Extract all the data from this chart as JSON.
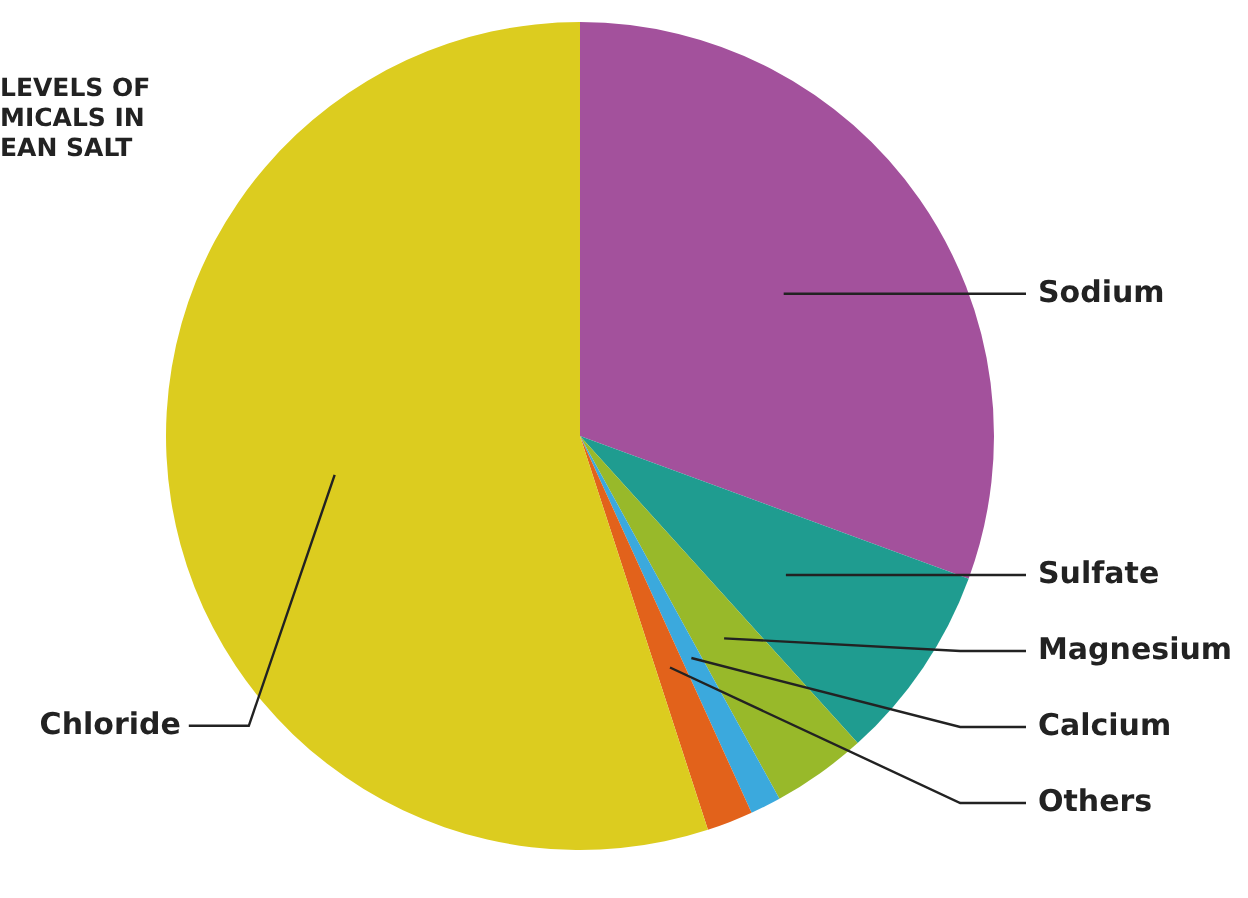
{
  "chart_data": {
    "type": "pie",
    "title": "LEVELS OF\nMICALS IN\nEAN SALT",
    "categories": [
      "Sodium",
      "Sulfate",
      "Magnesium",
      "Calcium",
      "Others",
      "Chloride"
    ],
    "values": [
      30.6,
      7.7,
      3.7,
      1.2,
      1.8,
      55.0
    ],
    "colors": [
      "#a3519c",
      "#1f9c90",
      "#98b92a",
      "#3ba9dd",
      "#e2621b",
      "#dccc1f"
    ],
    "legend": false
  }
}
